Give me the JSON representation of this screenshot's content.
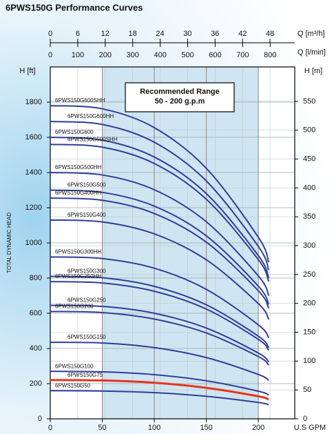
{
  "chart_data": {
    "type": "line",
    "title": "6PWS150G Performance Curves",
    "xlabel": "U.S GPM",
    "ylabel": "TOTAL DYNAMIC HEAD",
    "ylabel_top": "H [ft]",
    "y2label": "H [m]",
    "top_axes": [
      {
        "label": "Q [m³/h]",
        "xlim": [
          0,
          53.4
        ],
        "xticks": [
          0,
          6,
          12,
          18,
          24,
          30,
          36,
          42,
          48
        ]
      },
      {
        "label": "Q [l/min]",
        "xlim": [
          0,
          889.5
        ],
        "xticks": [
          0,
          100,
          200,
          300,
          400,
          500,
          600,
          700,
          800
        ]
      }
    ],
    "annotation": [
      "Recommended Range",
      "50 - 200 g.p.m"
    ],
    "highlight_range": [
      50,
      200
    ],
    "highlight_color": "#cfe5f1",
    "xlim": [
      0,
      235
    ],
    "xticks": [
      0,
      50,
      100,
      150,
      200
    ],
    "ylim": [
      0,
      2000
    ],
    "yticks": [
      0,
      200,
      400,
      600,
      800,
      1000,
      1200,
      1400,
      1600,
      1800
    ],
    "y2lim": [
      0,
      609.6
    ],
    "y2ticks": [
      0,
      50,
      100,
      150,
      200,
      250,
      300,
      350,
      400,
      450,
      500,
      550
    ],
    "grid": true,
    "x": [
      0,
      50,
      100,
      150,
      200,
      210
    ],
    "series": [
      {
        "name": "6PWS150G600SHH",
        "color": "#2e3d9a",
        "values": [
          1780,
          1762,
          1655,
          1424,
          1032,
          890
        ]
      },
      {
        "name": "6PWS150G600HH",
        "color": "#2e3d9a",
        "values": [
          1690,
          1673,
          1572,
          1352,
          980,
          845
        ]
      },
      {
        "name": "6PWS150G600",
        "color": "#2e3d9a",
        "values": [
          1600,
          1584,
          1488,
          1280,
          928,
          800
        ]
      },
      {
        "name": "6PWS150G500SHH",
        "color": "#2e3d9a",
        "values": [
          1560,
          1544,
          1451,
          1248,
          905,
          780
        ]
      },
      {
        "name": "6PWS150G500HH",
        "color": "#2e3d9a",
        "values": [
          1400,
          1386,
          1302,
          1120,
          812,
          700
        ]
      },
      {
        "name": "6PWS150G500",
        "color": "#2e3d9a",
        "values": [
          1300,
          1287,
          1209,
          1040,
          754,
          650
        ]
      },
      {
        "name": "6PWS150G400HH",
        "color": "#2e3d9a",
        "values": [
          1255,
          1242,
          1167,
          1004,
          728,
          628
        ]
      },
      {
        "name": "6PWS150G400",
        "color": "#2e3d9a",
        "values": [
          1130,
          1119,
          1051,
          904,
          655,
          565
        ]
      },
      {
        "name": "6PWS150G300HH",
        "color": "#2e3d9a",
        "values": [
          920,
          911,
          856,
          736,
          534,
          460
        ]
      },
      {
        "name": "6PWS150G300",
        "color": "#2e3d9a",
        "values": [
          810,
          802,
          753,
          648,
          470,
          405
        ]
      },
      {
        "name": "6PWS150G250HH",
        "color": "#2e3d9a",
        "values": [
          780,
          772,
          725,
          624,
          452,
          390
        ]
      },
      {
        "name": "6PWS150G250",
        "color": "#2e3d9a",
        "values": [
          645,
          639,
          600,
          516,
          374,
          323
        ]
      },
      {
        "name": "6PWS150G200",
        "color": "#2e3d9a",
        "values": [
          610,
          604,
          567,
          488,
          354,
          305
        ]
      },
      {
        "name": "6PWS150G150",
        "color": "#2e3d9a",
        "values": [
          435,
          431,
          405,
          348,
          252,
          218
        ]
      },
      {
        "name": "6PWS150G100",
        "color": "#2e3d9a",
        "values": [
          270,
          267,
          251,
          216,
          157,
          135
        ]
      },
      {
        "name": "6PWS150G75",
        "color": "#e8341c",
        "values": [
          220,
          218,
          205,
          176,
          128,
          110
        ]
      },
      {
        "name": "6PWS150G50",
        "color": "#2e3d9a",
        "values": [
          160,
          158,
          149,
          128,
          93,
          80
        ]
      }
    ]
  }
}
